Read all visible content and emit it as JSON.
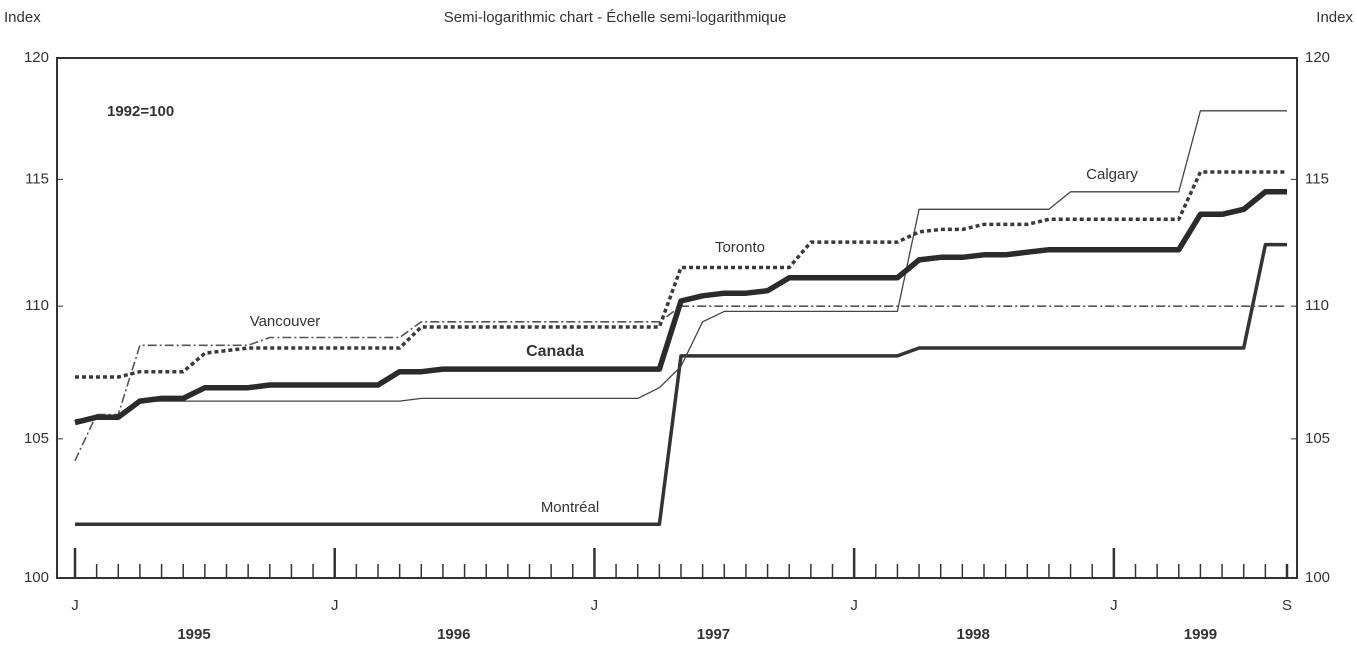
{
  "chart_data": {
    "type": "line",
    "title": "Semi-logarithmic chart - Échelle semi-logarithmique",
    "y_label": "Index",
    "y2_label": "Index",
    "annotation": "1992=100",
    "log_scale": true,
    "grid": false,
    "categories": [
      "J",
      null,
      null,
      null,
      null,
      null,
      null,
      null,
      null,
      null,
      null,
      null,
      "J",
      null,
      null,
      null,
      null,
      null,
      null,
      null,
      null,
      null,
      null,
      null,
      "J",
      null,
      null,
      null,
      null,
      null,
      null,
      null,
      null,
      null,
      null,
      null,
      "J",
      null,
      null,
      null,
      null,
      null,
      null,
      null,
      null,
      null,
      null,
      null,
      "J",
      null,
      null,
      null,
      null,
      null,
      null,
      null,
      "S"
    ],
    "years": [
      "1995",
      "1996",
      "1997",
      "1998",
      "1999"
    ],
    "ylim": [
      100,
      120
    ],
    "yticks": [
      100,
      105,
      110,
      115,
      120
    ],
    "y2lim": [
      100,
      120
    ],
    "y2ticks": [
      100,
      105,
      110,
      115,
      120
    ],
    "series": [
      {
        "name": "Canada",
        "color": "#2b2b2b",
        "linestyle": "solid-bold",
        "values": [
          105.6,
          105.8,
          105.8,
          106.4,
          106.5,
          106.5,
          106.9,
          106.9,
          106.9,
          107.0,
          107.0,
          107.0,
          107.0,
          107.0,
          107.0,
          107.5,
          107.5,
          107.6,
          107.6,
          107.6,
          107.6,
          107.6,
          107.6,
          107.6,
          107.6,
          107.6,
          107.6,
          107.6,
          110.2,
          110.4,
          110.5,
          110.5,
          110.6,
          111.1,
          111.1,
          111.1,
          111.1,
          111.1,
          111.1,
          111.8,
          111.9,
          111.9,
          112.0,
          112.0,
          112.1,
          112.2,
          112.2,
          112.2,
          112.2,
          112.2,
          112.2,
          112.2,
          113.6,
          113.6,
          113.8,
          114.5,
          114.5
        ]
      },
      {
        "name": "Toronto",
        "color": "#3a3a3a",
        "linestyle": "dotted",
        "values": [
          107.3,
          107.3,
          107.3,
          107.5,
          107.5,
          107.5,
          108.2,
          108.3,
          108.4,
          108.4,
          108.4,
          108.4,
          108.4,
          108.4,
          108.4,
          108.4,
          109.2,
          109.2,
          109.2,
          109.2,
          109.2,
          109.2,
          109.2,
          109.2,
          109.2,
          109.2,
          109.2,
          109.2,
          111.5,
          111.5,
          111.5,
          111.5,
          111.5,
          111.5,
          112.5,
          112.5,
          112.5,
          112.5,
          112.5,
          112.9,
          113.0,
          113.0,
          113.2,
          113.2,
          113.2,
          113.4,
          113.4,
          113.4,
          113.4,
          113.4,
          113.4,
          113.4,
          115.3,
          115.3,
          115.3,
          115.3,
          115.3
        ]
      },
      {
        "name": "Vancouver",
        "color": "#555555",
        "linestyle": "dashdot",
        "values": [
          104.2,
          105.9,
          105.9,
          108.5,
          108.5,
          108.5,
          108.5,
          108.5,
          108.5,
          108.8,
          108.8,
          108.8,
          108.8,
          108.8,
          108.8,
          108.8,
          109.4,
          109.4,
          109.4,
          109.4,
          109.4,
          109.4,
          109.4,
          109.4,
          109.4,
          109.4,
          109.4,
          109.4,
          110.0,
          110.0,
          110.0,
          110.0,
          110.0,
          110.0,
          110.0,
          110.0,
          110.0,
          110.0,
          110.0,
          110.0,
          110.0,
          110.0,
          110.0,
          110.0,
          110.0,
          110.0,
          110.0,
          110.0,
          110.0,
          110.0,
          110.0,
          110.0,
          110.0,
          110.0,
          110.0,
          110.0,
          110.0
        ]
      },
      {
        "name": "Calgary",
        "color": "#444444",
        "linestyle": "solid-thin",
        "values": [
          105.7,
          105.8,
          105.8,
          106.4,
          106.4,
          106.4,
          106.4,
          106.4,
          106.4,
          106.4,
          106.4,
          106.4,
          106.4,
          106.4,
          106.4,
          106.4,
          106.5,
          106.5,
          106.5,
          106.5,
          106.5,
          106.5,
          106.5,
          106.5,
          106.5,
          106.5,
          106.5,
          106.9,
          107.7,
          109.4,
          109.8,
          109.8,
          109.8,
          109.8,
          109.8,
          109.8,
          109.8,
          109.8,
          109.8,
          113.8,
          113.8,
          113.8,
          113.8,
          113.8,
          113.8,
          113.8,
          114.5,
          114.5,
          114.5,
          114.5,
          114.5,
          114.5,
          117.8,
          117.8,
          117.8,
          117.8,
          117.8
        ]
      },
      {
        "name": "Montréal",
        "color": "#333333",
        "linestyle": "solid",
        "values": [
          101.9,
          101.9,
          101.9,
          101.9,
          101.9,
          101.9,
          101.9,
          101.9,
          101.9,
          101.9,
          101.9,
          101.9,
          101.9,
          101.9,
          101.9,
          101.9,
          101.9,
          101.9,
          101.9,
          101.9,
          101.9,
          101.9,
          101.9,
          101.9,
          101.9,
          101.9,
          101.9,
          101.9,
          108.1,
          108.1,
          108.1,
          108.1,
          108.1,
          108.1,
          108.1,
          108.1,
          108.1,
          108.1,
          108.1,
          108.4,
          108.4,
          108.4,
          108.4,
          108.4,
          108.4,
          108.4,
          108.4,
          108.4,
          108.4,
          108.4,
          108.4,
          108.4,
          108.4,
          108.4,
          108.4,
          112.4,
          112.4
        ]
      }
    ]
  }
}
